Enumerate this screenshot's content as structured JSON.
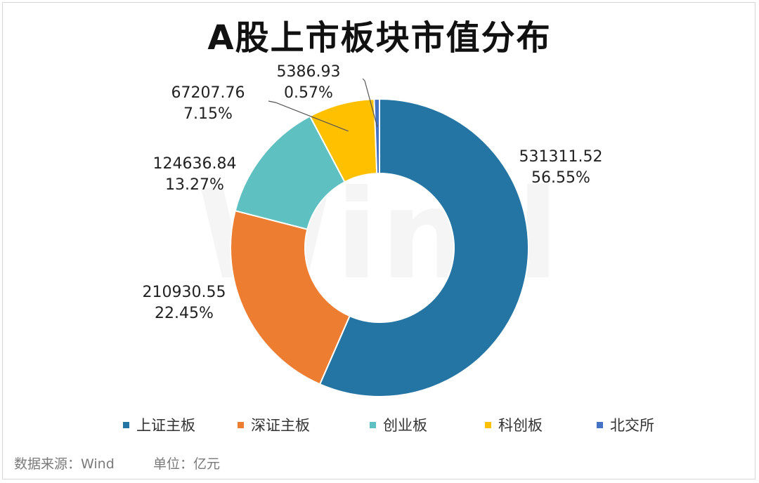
{
  "title": "A股上市板块市值分布",
  "watermark": "Wind",
  "footer": {
    "source": "数据来源：Wind",
    "unit": "单位：亿元"
  },
  "chart_data": {
    "type": "pie",
    "variant": "donut",
    "title": "A股上市板块市值分布",
    "legend_position": "bottom",
    "categories": [
      "上证主板",
      "深证主板",
      "创业板",
      "科创板",
      "北交所"
    ],
    "values": [
      531311.52,
      210930.55,
      124636.84,
      67207.76,
      5386.93
    ],
    "value_labels": [
      "531311.52",
      "210930.55",
      "124636.84",
      "67207.76",
      "5386.93"
    ],
    "percent_labels": [
      "56.55%",
      "22.45%",
      "13.27%",
      "7.15%",
      "0.57%"
    ],
    "colors": [
      "#2475A3",
      "#ED7D31",
      "#5EC0C1",
      "#FFC000",
      "#4472C4"
    ]
  }
}
